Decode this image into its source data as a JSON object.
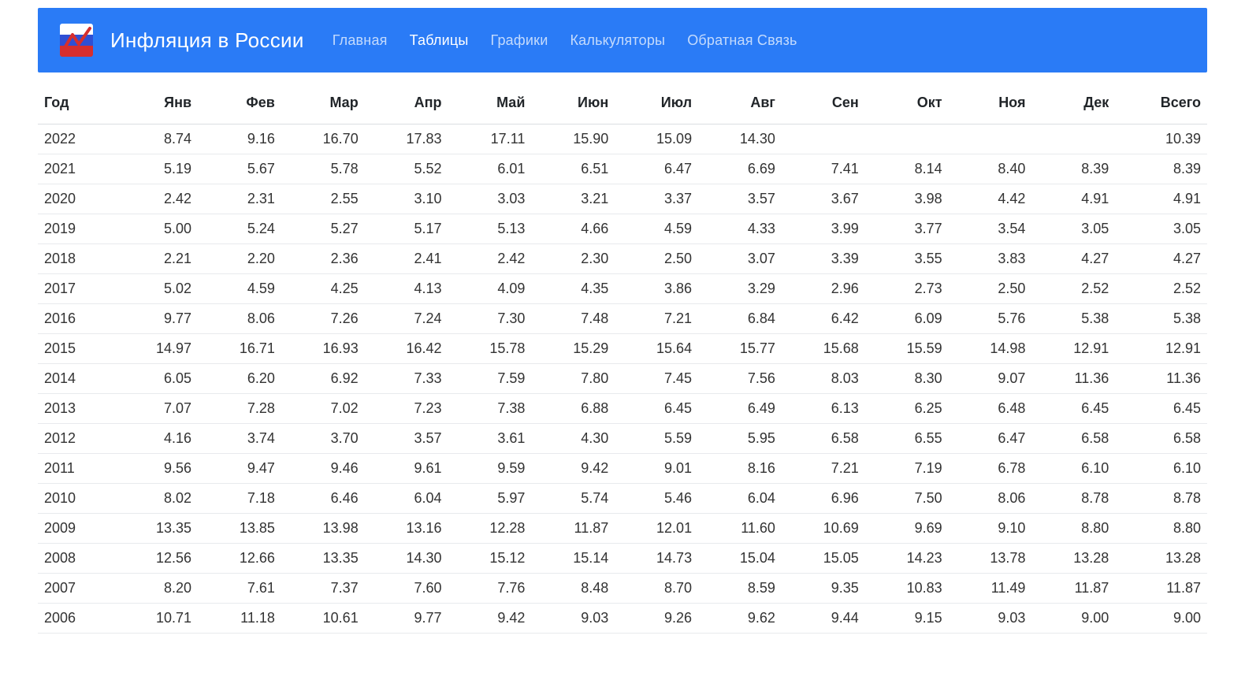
{
  "brand": "Инфляция в России",
  "nav": {
    "items": [
      {
        "label": "Главная",
        "active": false
      },
      {
        "label": "Таблицы",
        "active": true
      },
      {
        "label": "Графики",
        "active": false
      },
      {
        "label": "Калькуляторы",
        "active": false
      },
      {
        "label": "Обратная Связь",
        "active": false
      }
    ]
  },
  "header_bg": "#2a7bf6",
  "table": {
    "columns": [
      "Год",
      "Янв",
      "Фев",
      "Мар",
      "Апр",
      "Май",
      "Июн",
      "Июл",
      "Авг",
      "Сен",
      "Окт",
      "Ноя",
      "Дек",
      "Всего"
    ],
    "rows": [
      [
        "2022",
        "8.74",
        "9.16",
        "16.70",
        "17.83",
        "17.11",
        "15.90",
        "15.09",
        "14.30",
        "",
        "",
        "",
        "",
        "10.39"
      ],
      [
        "2021",
        "5.19",
        "5.67",
        "5.78",
        "5.52",
        "6.01",
        "6.51",
        "6.47",
        "6.69",
        "7.41",
        "8.14",
        "8.40",
        "8.39",
        "8.39"
      ],
      [
        "2020",
        "2.42",
        "2.31",
        "2.55",
        "3.10",
        "3.03",
        "3.21",
        "3.37",
        "3.57",
        "3.67",
        "3.98",
        "4.42",
        "4.91",
        "4.91"
      ],
      [
        "2019",
        "5.00",
        "5.24",
        "5.27",
        "5.17",
        "5.13",
        "4.66",
        "4.59",
        "4.33",
        "3.99",
        "3.77",
        "3.54",
        "3.05",
        "3.05"
      ],
      [
        "2018",
        "2.21",
        "2.20",
        "2.36",
        "2.41",
        "2.42",
        "2.30",
        "2.50",
        "3.07",
        "3.39",
        "3.55",
        "3.83",
        "4.27",
        "4.27"
      ],
      [
        "2017",
        "5.02",
        "4.59",
        "4.25",
        "4.13",
        "4.09",
        "4.35",
        "3.86",
        "3.29",
        "2.96",
        "2.73",
        "2.50",
        "2.52",
        "2.52"
      ],
      [
        "2016",
        "9.77",
        "8.06",
        "7.26",
        "7.24",
        "7.30",
        "7.48",
        "7.21",
        "6.84",
        "6.42",
        "6.09",
        "5.76",
        "5.38",
        "5.38"
      ],
      [
        "2015",
        "14.97",
        "16.71",
        "16.93",
        "16.42",
        "15.78",
        "15.29",
        "15.64",
        "15.77",
        "15.68",
        "15.59",
        "14.98",
        "12.91",
        "12.91"
      ],
      [
        "2014",
        "6.05",
        "6.20",
        "6.92",
        "7.33",
        "7.59",
        "7.80",
        "7.45",
        "7.56",
        "8.03",
        "8.30",
        "9.07",
        "11.36",
        "11.36"
      ],
      [
        "2013",
        "7.07",
        "7.28",
        "7.02",
        "7.23",
        "7.38",
        "6.88",
        "6.45",
        "6.49",
        "6.13",
        "6.25",
        "6.48",
        "6.45",
        "6.45"
      ],
      [
        "2012",
        "4.16",
        "3.74",
        "3.70",
        "3.57",
        "3.61",
        "4.30",
        "5.59",
        "5.95",
        "6.58",
        "6.55",
        "6.47",
        "6.58",
        "6.58"
      ],
      [
        "2011",
        "9.56",
        "9.47",
        "9.46",
        "9.61",
        "9.59",
        "9.42",
        "9.01",
        "8.16",
        "7.21",
        "7.19",
        "6.78",
        "6.10",
        "6.10"
      ],
      [
        "2010",
        "8.02",
        "7.18",
        "6.46",
        "6.04",
        "5.97",
        "5.74",
        "5.46",
        "6.04",
        "6.96",
        "7.50",
        "8.06",
        "8.78",
        "8.78"
      ],
      [
        "2009",
        "13.35",
        "13.85",
        "13.98",
        "13.16",
        "12.28",
        "11.87",
        "12.01",
        "11.60",
        "10.69",
        "9.69",
        "9.10",
        "8.80",
        "8.80"
      ],
      [
        "2008",
        "12.56",
        "12.66",
        "13.35",
        "14.30",
        "15.12",
        "15.14",
        "14.73",
        "15.04",
        "15.05",
        "14.23",
        "13.78",
        "13.28",
        "13.28"
      ],
      [
        "2007",
        "8.20",
        "7.61",
        "7.37",
        "7.60",
        "7.76",
        "8.48",
        "8.70",
        "8.59",
        "9.35",
        "10.83",
        "11.49",
        "11.87",
        "11.87"
      ],
      [
        "2006",
        "10.71",
        "11.18",
        "10.61",
        "9.77",
        "9.42",
        "9.03",
        "9.26",
        "9.62",
        "9.44",
        "9.15",
        "9.03",
        "9.00",
        "9.00"
      ]
    ]
  }
}
